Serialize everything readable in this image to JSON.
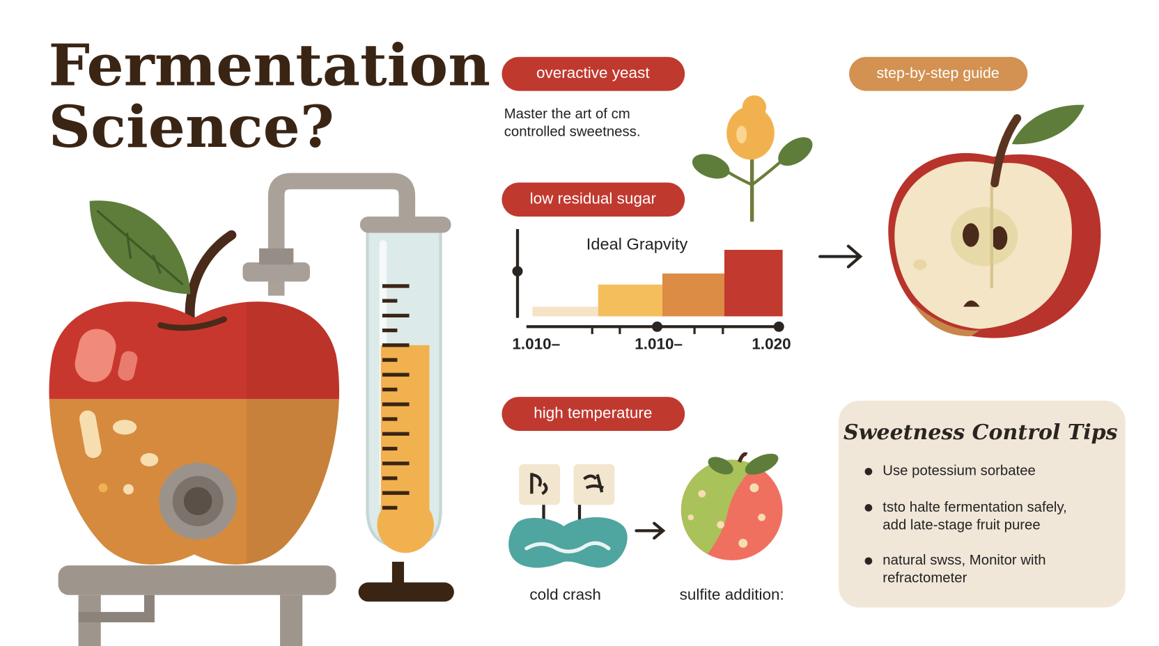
{
  "header": {
    "title_lines": [
      "Fermentation",
      "Science?"
    ]
  },
  "tags": {
    "yeast": "overactive yeast",
    "sugar": "low residual sugar",
    "temperature": "high temperature",
    "guide": "step-by-step guide"
  },
  "intro_lines": [
    "Master the art of cm",
    "controlled sweetness."
  ],
  "gravity": {
    "title": "Ideal Grapvity",
    "tick_labels": [
      "1.010–",
      "1.010–",
      "1.020"
    ]
  },
  "steps": {
    "left": "cold crash",
    "right": "sulfite addition:"
  },
  "tips": {
    "title": "Sweetness Control Tips",
    "items": [
      [
        "Use potessium sorbatee"
      ],
      [
        "tsto halte fermentation safely,",
        "add late-stage fruit puree"
      ],
      [
        "natural swss, Monitor with",
        "refractometer"
      ]
    ]
  }
}
